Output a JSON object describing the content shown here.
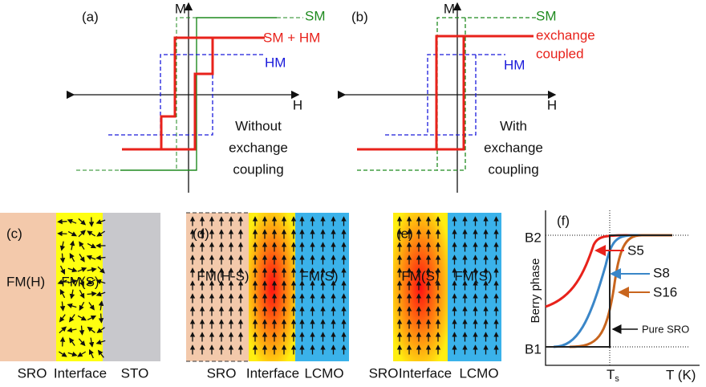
{
  "panels": {
    "a": {
      "label": "(a)",
      "y_axis": "M",
      "x_axis": "H",
      "legend": [
        "SM",
        "SM + HM",
        "HM"
      ],
      "note": [
        "Without",
        "exchange",
        "coupling"
      ]
    },
    "b": {
      "label": "(b)",
      "y_axis": "M",
      "x_axis": "H",
      "legend": [
        "SM",
        "exchange",
        "coupled",
        "HM"
      ],
      "note": [
        "With",
        "exchange",
        "coupling"
      ]
    },
    "c": {
      "label": "(c)",
      "regions": [
        "FM(H)",
        "FM(S)"
      ],
      "layers": [
        "SRO",
        "Interface",
        "STO"
      ]
    },
    "d": {
      "label": "(d)",
      "regions": [
        "FM(H-S)",
        "FM(S)"
      ],
      "layers": [
        "SRO",
        "Interface",
        "LCMO"
      ]
    },
    "e": {
      "label": "(e)",
      "regions": [
        "FM(S)",
        "FM(S)"
      ],
      "layers": [
        "SRO",
        "Interface",
        "LCMO"
      ]
    },
    "f": {
      "label": "(f)",
      "y_axis": "Berry phase",
      "x_axis": "T (K)",
      "y_levels": [
        "B2",
        "B1"
      ],
      "x_mark": "T",
      "x_mark_sub": "s",
      "curves": [
        "S5",
        "S8",
        "S16",
        "Pure SRO"
      ]
    }
  }
}
